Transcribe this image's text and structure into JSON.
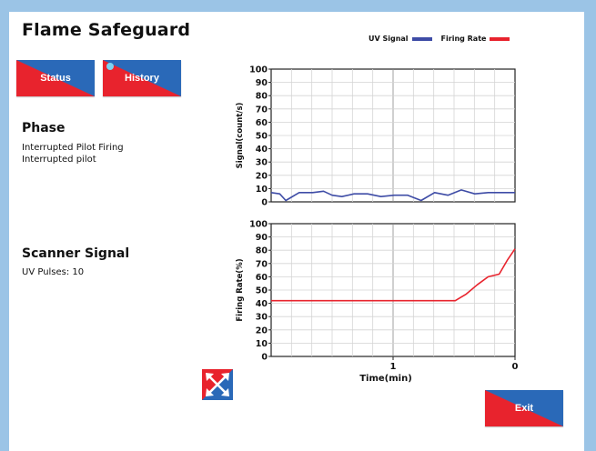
{
  "title": "Flame Safeguard",
  "buttons": {
    "status": "Status",
    "history": "History",
    "exit": "Exit"
  },
  "phase": {
    "heading": "Phase",
    "line1": "Interrupted Pilot Firing",
    "line2": "Interrupted pilot"
  },
  "scanner": {
    "heading": "Scanner Signal",
    "pulses": "UV Pulses: 10"
  },
  "legend": {
    "uv": "UV Signal",
    "firing": "Firing Rate"
  },
  "colors": {
    "uv": "#3e4ca6",
    "firing": "#e8232d",
    "accent_blue": "#2a69b8",
    "accent_red": "#e8232d"
  },
  "icons": {
    "expand": "expand-arrows-icon"
  },
  "chart_data": [
    {
      "type": "line",
      "ylabel": "Signal(count/s)",
      "ylim": [
        0,
        100
      ],
      "yticks": [
        "0",
        "10",
        "20",
        "30",
        "40",
        "50",
        "60",
        "70",
        "80",
        "90",
        "100"
      ],
      "xlim": [
        2,
        0
      ],
      "grid": true,
      "series": [
        {
          "name": "UV Signal",
          "x": [
            2.0,
            1.93,
            1.88,
            1.77,
            1.66,
            1.57,
            1.5,
            1.42,
            1.32,
            1.21,
            1.1,
            0.99,
            0.88,
            0.77,
            0.66,
            0.55,
            0.44,
            0.33,
            0.22,
            0.11,
            0.0
          ],
          "values": [
            7,
            6,
            1,
            7,
            7,
            8,
            5,
            4,
            6,
            6,
            4,
            5,
            5,
            1,
            7,
            5,
            9,
            6,
            7,
            7,
            7
          ]
        }
      ]
    },
    {
      "type": "line",
      "ylabel": "Firing Rate(%)",
      "xlabel": "Time(min)",
      "ylim": [
        0,
        100
      ],
      "yticks": [
        "0",
        "10",
        "20",
        "30",
        "40",
        "50",
        "60",
        "70",
        "80",
        "90",
        "100"
      ],
      "xlim": [
        2,
        0
      ],
      "xticks": [
        {
          "value": 1,
          "label": "1"
        },
        {
          "value": 0,
          "label": "0"
        }
      ],
      "grid": true,
      "series": [
        {
          "name": "Firing Rate",
          "x": [
            2.0,
            0.98,
            0.49,
            0.4,
            0.31,
            0.22,
            0.13,
            0.06,
            0.0
          ],
          "values": [
            42,
            42,
            42,
            47,
            54,
            60,
            62,
            73,
            81
          ]
        }
      ]
    }
  ]
}
